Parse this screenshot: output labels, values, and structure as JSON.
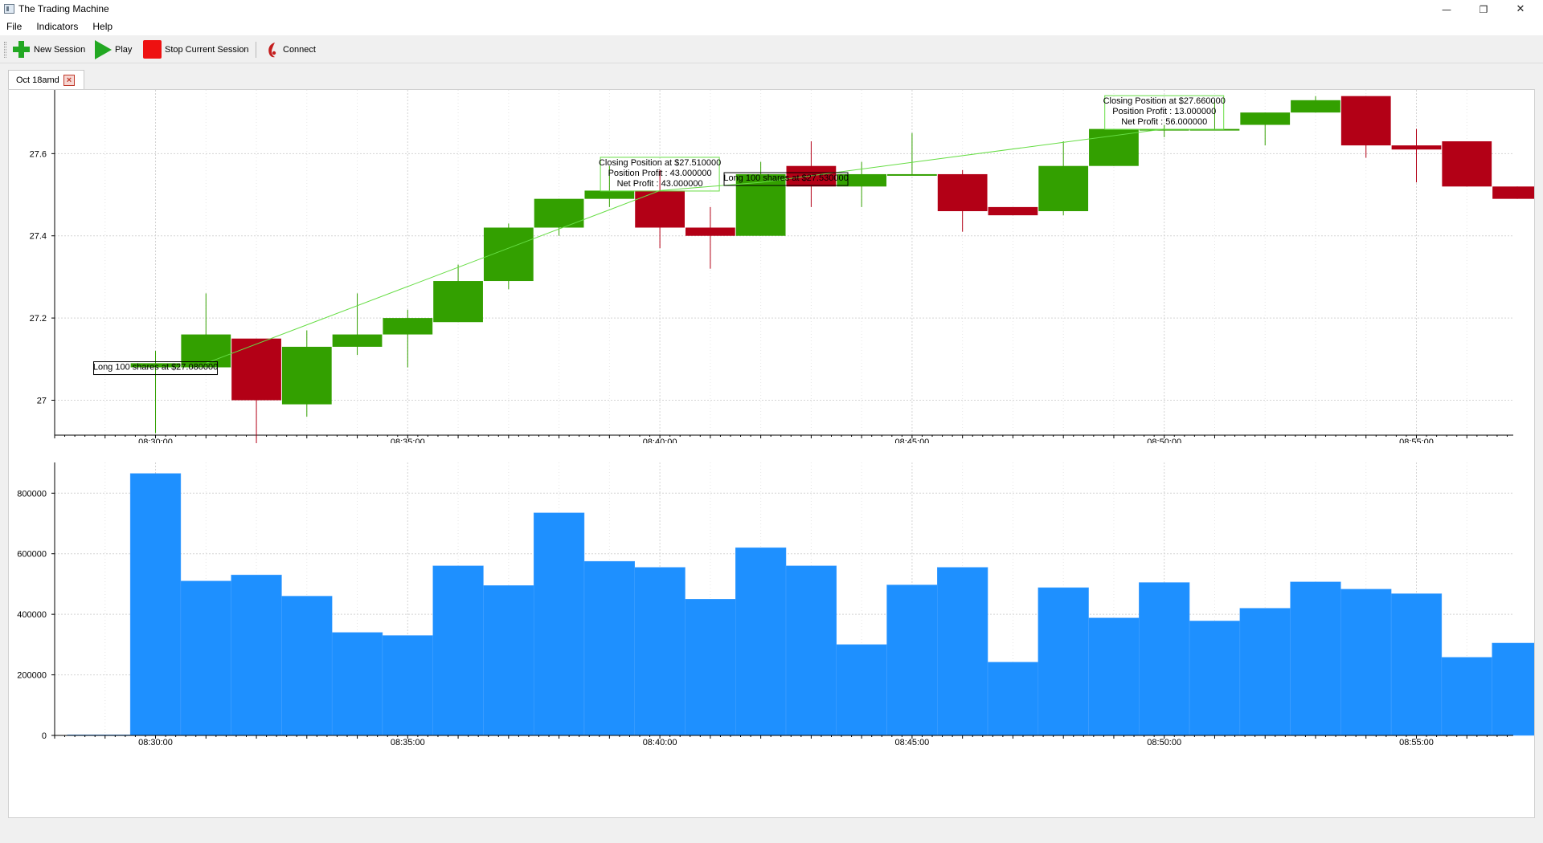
{
  "window": {
    "title": "The Trading Machine"
  },
  "menubar": {
    "items": [
      "File",
      "Indicators",
      "Help"
    ]
  },
  "toolbar": {
    "new_session": "New Session",
    "play": "Play",
    "stop_session": "Stop Current Session",
    "connect": "Connect"
  },
  "tabs": [
    {
      "label": "Oct 18amd"
    }
  ],
  "colors": {
    "up": "#33a000",
    "down": "#b30016",
    "volume": "#1e90ff",
    "signal_line": "#66dd44"
  },
  "chart_data": [
    {
      "type": "candlestick",
      "ylim": [
        26.915,
        27.755
      ],
      "y_ticks": [
        27,
        27.2,
        27.4,
        27.6
      ],
      "y_tick_labels": [
        "27",
        "27.2",
        "27.4",
        "27.6"
      ],
      "x_tick_labels": [
        "08:30:00",
        "08:35:00",
        "08:40:00",
        "08:45:00",
        "08:50:00",
        "08:55:00"
      ],
      "x_tick_minutes": [
        0,
        5,
        10,
        15,
        20,
        25
      ],
      "xlim_minutes": [
        -2.0,
        26.92
      ],
      "candles": [
        {
          "t": 0,
          "open": 27.08,
          "close": 27.09,
          "high": 27.12,
          "low": 26.92
        },
        {
          "t": 1,
          "open": 27.08,
          "close": 27.16,
          "high": 27.26,
          "low": 27.08
        },
        {
          "t": 2,
          "open": 27.15,
          "close": 27.0,
          "high": 27.15,
          "low": 26.89
        },
        {
          "t": 3,
          "open": 26.99,
          "close": 27.13,
          "high": 27.17,
          "low": 26.96
        },
        {
          "t": 4,
          "open": 27.13,
          "close": 27.16,
          "high": 27.26,
          "low": 27.11
        },
        {
          "t": 5,
          "open": 27.16,
          "close": 27.2,
          "high": 27.22,
          "low": 27.08
        },
        {
          "t": 6,
          "open": 27.19,
          "close": 27.29,
          "high": 27.33,
          "low": 27.19
        },
        {
          "t": 7,
          "open": 27.29,
          "close": 27.42,
          "high": 27.43,
          "low": 27.27
        },
        {
          "t": 8,
          "open": 27.42,
          "close": 27.49,
          "high": 27.49,
          "low": 27.4
        },
        {
          "t": 9,
          "open": 27.49,
          "close": 27.51,
          "high": 27.57,
          "low": 27.47
        },
        {
          "t": 10,
          "open": 27.51,
          "close": 27.42,
          "high": 27.56,
          "low": 27.37
        },
        {
          "t": 11,
          "open": 27.42,
          "close": 27.4,
          "high": 27.47,
          "low": 27.32
        },
        {
          "t": 12,
          "open": 27.4,
          "close": 27.55,
          "high": 27.58,
          "low": 27.4
        },
        {
          "t": 13,
          "open": 27.57,
          "close": 27.52,
          "high": 27.63,
          "low": 27.47
        },
        {
          "t": 14,
          "open": 27.52,
          "close": 27.55,
          "high": 27.58,
          "low": 27.47
        },
        {
          "t": 15,
          "open": 27.55,
          "close": 27.55,
          "high": 27.65,
          "low": 27.55
        },
        {
          "t": 16,
          "open": 27.55,
          "close": 27.46,
          "high": 27.56,
          "low": 27.41
        },
        {
          "t": 17,
          "open": 27.47,
          "close": 27.45,
          "high": 27.47,
          "low": 27.45
        },
        {
          "t": 18,
          "open": 27.46,
          "close": 27.57,
          "high": 27.63,
          "low": 27.45
        },
        {
          "t": 19,
          "open": 27.57,
          "close": 27.66,
          "high": 27.66,
          "low": 27.57
        },
        {
          "t": 20,
          "open": 27.66,
          "close": 27.66,
          "high": 27.67,
          "low": 27.64
        },
        {
          "t": 21,
          "open": 27.66,
          "close": 27.66,
          "high": 27.73,
          "low": 27.66
        },
        {
          "t": 22,
          "open": 27.67,
          "close": 27.7,
          "high": 27.7,
          "low": 27.62
        },
        {
          "t": 23,
          "open": 27.7,
          "close": 27.73,
          "high": 27.74,
          "low": 27.7
        },
        {
          "t": 24,
          "open": 27.74,
          "close": 27.62,
          "high": 27.74,
          "low": 27.59
        },
        {
          "t": 25,
          "open": 27.62,
          "close": 27.61,
          "high": 27.66,
          "low": 27.53
        },
        {
          "t": 26,
          "open": 27.63,
          "close": 27.52,
          "high": 27.63,
          "low": 27.52
        },
        {
          "t": 27,
          "open": 27.52,
          "close": 27.49,
          "high": 27.52,
          "low": 27.49
        }
      ],
      "trade_line": [
        {
          "t": 1,
          "y": 27.09
        },
        {
          "t": 10,
          "y": 27.51
        },
        {
          "t": 12,
          "y": 27.53
        },
        {
          "t": 20,
          "y": 27.66
        }
      ],
      "annotations": [
        {
          "t": 0,
          "y": 27.08,
          "style": "entry",
          "lines": [
            "Long 100 shares at $27.080000"
          ]
        },
        {
          "t": 10,
          "y": 27.55,
          "style": "exit",
          "lines": [
            "Closing Position at $27.510000",
            "Position Profit : 43.000000",
            "Net Profit : 43.000000"
          ]
        },
        {
          "t": 12.5,
          "y": 27.54,
          "style": "entry",
          "lines": [
            "Long 100 shares at $27.530000"
          ]
        },
        {
          "t": 20,
          "y": 27.7,
          "style": "exit",
          "lines": [
            "Closing Position at $27.660000",
            "Position Profit : 13.000000",
            "Net Profit : 56.000000"
          ]
        }
      ]
    },
    {
      "type": "bar",
      "ylim": [
        0,
        875000
      ],
      "y_ticks": [
        0,
        200000,
        400000,
        600000,
        800000
      ],
      "y_tick_labels": [
        "0",
        "200000",
        "400000",
        "600000",
        "800000"
      ],
      "x_tick_labels": [
        "08:30:00",
        "08:35:00",
        "08:40:00",
        "08:45:00",
        "08:50:00",
        "08:55:00"
      ],
      "x_tick_minutes": [
        0,
        5,
        10,
        15,
        20,
        25
      ],
      "xlim_minutes": [
        -2.0,
        26.92
      ],
      "t": [
        -1.5,
        -1.0,
        -0.5,
        0,
        1,
        2,
        3,
        4,
        5,
        6,
        7,
        8,
        9,
        10,
        11,
        12,
        13,
        14,
        15,
        16,
        17,
        18,
        19,
        20,
        21,
        22,
        23,
        24,
        25,
        26,
        27
      ],
      "values": [
        2000,
        2000,
        2000,
        865000,
        510000,
        530000,
        460000,
        340000,
        330000,
        560000,
        495000,
        735000,
        575000,
        555000,
        450000,
        620000,
        560000,
        300000,
        497000,
        555000,
        242000,
        488000,
        388000,
        505000,
        378000,
        420000,
        507000,
        483000,
        468000,
        258000,
        305000
      ]
    }
  ]
}
